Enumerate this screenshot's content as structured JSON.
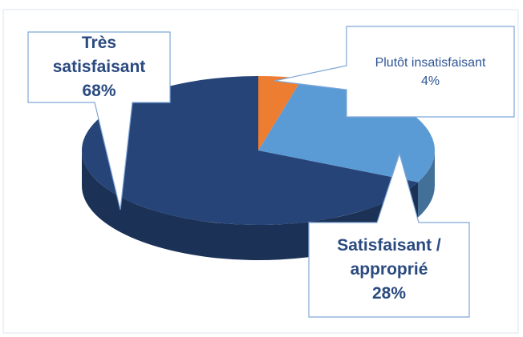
{
  "chart_data": {
    "type": "pie3d",
    "categories": [
      "Plutôt insatisfaisant",
      "Satisfaisant / approprié",
      "Très satisfaisant"
    ],
    "values": [
      4,
      28,
      68
    ],
    "value_labels": [
      "4%",
      "28%",
      "68%"
    ],
    "colors": [
      "#ed7d31",
      "#5b9bd5",
      "#264478"
    ]
  }
}
